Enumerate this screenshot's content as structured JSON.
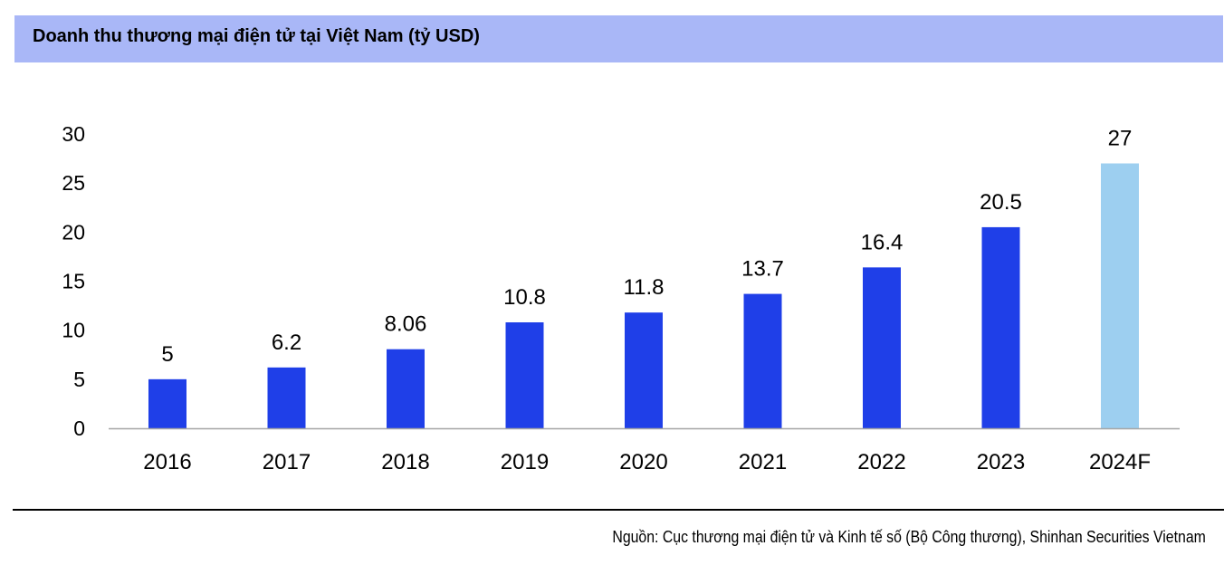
{
  "chart_data": {
    "type": "bar",
    "title": "Doanh thu thương mại điện tử tại Việt Nam (tỷ USD)",
    "categories": [
      "2016",
      "2017",
      "2018",
      "2019",
      "2020",
      "2021",
      "2022",
      "2023",
      "2024F"
    ],
    "values": [
      5,
      6.2,
      8.06,
      10.8,
      11.8,
      13.7,
      16.4,
      20.5,
      27
    ],
    "value_labels": [
      "5",
      "6.2",
      "8.06",
      "10.8",
      "11.8",
      "13.7",
      "16.4",
      "20.5",
      "27"
    ],
    "forecast_flags": [
      false,
      false,
      false,
      false,
      false,
      false,
      false,
      false,
      true
    ],
    "ylim": [
      0,
      30
    ],
    "yticks": [
      "0",
      "5",
      "10",
      "15",
      "20",
      "25",
      "30"
    ],
    "xlabel": "",
    "ylabel": "",
    "grid": false,
    "legend": "none"
  },
  "colors": {
    "bar": "#1F3FE8",
    "forecast_bar": "#9DCFF0",
    "title_bg": "#A9B7F7",
    "axis": "#A6A6A6"
  },
  "source": "Nguồn: Cục thương mại điện tử và Kinh tế số (Bộ Công thương), Shinhan Securities Vietnam"
}
